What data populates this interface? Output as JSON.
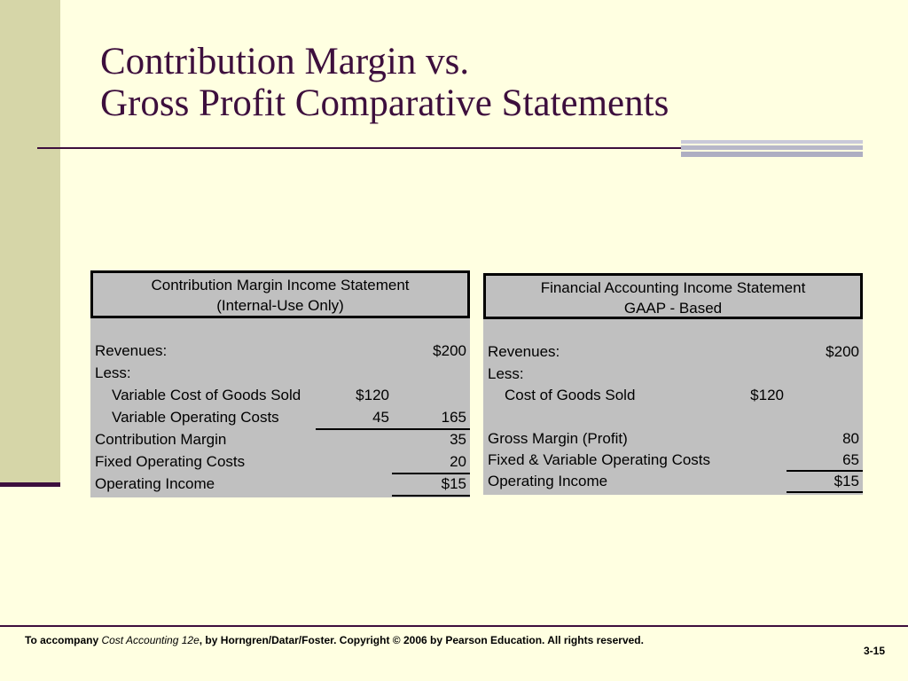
{
  "slide": {
    "title_line1": "Contribution Margin vs.",
    "title_line2": "Gross Profit Comparative Statements"
  },
  "left_statement": {
    "header_line1": "Contribution Margin Income Statement",
    "header_line2": "(Internal-Use Only)",
    "rows": [
      {
        "label": "Revenues:",
        "col1": "",
        "col2": "$200"
      },
      {
        "label": "Less:",
        "col1": "",
        "col2": ""
      },
      {
        "label": "Variable Cost of Goods Sold",
        "col1": "$120",
        "col2": ""
      },
      {
        "label": "Variable Operating Costs",
        "col1": "45",
        "col2": "165"
      },
      {
        "label": "Contribution Margin",
        "col1": "",
        "col2": "35"
      },
      {
        "label": "Fixed Operating Costs",
        "col1": "",
        "col2": "20"
      },
      {
        "label": "Operating Income",
        "col1": "",
        "col2": "$15"
      }
    ]
  },
  "right_statement": {
    "header_line1": "Financial Accounting Income Statement",
    "header_line2": "GAAP - Based",
    "rows": [
      {
        "label": "Revenues:",
        "col1": "",
        "col2": "$200"
      },
      {
        "label": "Less:",
        "col1": "",
        "col2": ""
      },
      {
        "label": "Cost of Goods Sold",
        "col1": "$120",
        "col2": ""
      },
      {
        "label": "Gross Margin (Profit)",
        "col1": "",
        "col2": "80"
      },
      {
        "label": "Fixed & Variable Operating Costs",
        "col1": "",
        "col2": "65"
      },
      {
        "label": "Operating Income",
        "col1": "",
        "col2": "$15"
      }
    ]
  },
  "footer": {
    "prefix": "To accompany ",
    "book_title": "Cost Accounting 12e",
    "suffix": ", by Horngren/Datar/Foster. Copyright © 2006 by Pearson Education. All rights reserved.",
    "page_number": "3-15"
  },
  "colors": {
    "accent": "#3d0f3d",
    "background": "#ffffe1",
    "side_band": "#d6d6a8",
    "table_fill": "#c0c0c0"
  }
}
